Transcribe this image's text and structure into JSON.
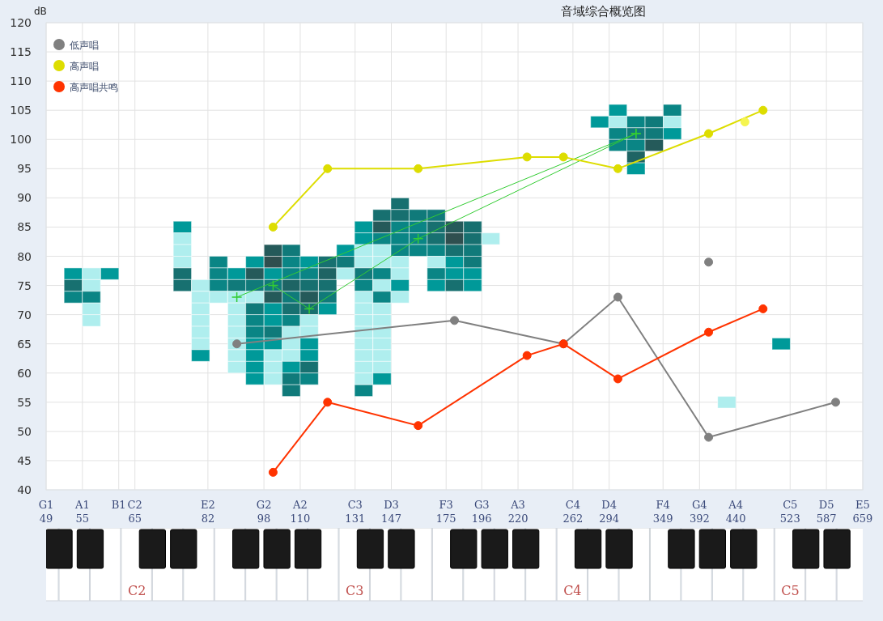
{
  "chart_data": {
    "type": "line",
    "title": "音域综合概览图",
    "ylabel": "dB",
    "log": "x",
    "xlim": [
      49,
      659
    ],
    "ylim": [
      40,
      120
    ],
    "xticks": [
      49,
      55,
      {
        "value": 61.74,
        "label": null
      },
      65,
      82,
      98,
      110,
      131,
      147,
      175,
      196,
      220,
      262,
      294,
      349,
      392,
      440,
      523,
      587,
      659
    ],
    "annotations": [
      "G1",
      "A1",
      "B1",
      "C2",
      "E2",
      "G2",
      "A2",
      "C3",
      "D3",
      "F3",
      "G3",
      "A3",
      "C4",
      "D4",
      "F4",
      "G4",
      "A4",
      "C5",
      "D5",
      "E5",
      "C2",
      "C3",
      "C4",
      "C5"
    ],
    "yticks": [
      40,
      45,
      50,
      55,
      60,
      65,
      70,
      75,
      80,
      85,
      90,
      95,
      100,
      105,
      110,
      115,
      120
    ],
    "grid": true,
    "legend": "top left",
    "series": [
      {
        "type": "scatter",
        "marker": "square",
        "x": [
          53.4,
          53.4,
          53.4,
          56.6,
          56.6,
          56.6,
          56.6,
          56.6,
          60.0,
          75.6,
          75.6,
          75.6,
          75.6,
          75.6,
          75.6,
          80.1,
          80.1,
          80.1,
          80.1,
          80.1,
          80.1,
          80.1,
          84.8,
          84.8,
          84.8,
          84.8,
          89.9,
          89.9,
          89.9,
          89.9,
          89.9,
          89.9,
          89.9,
          89.9,
          89.9,
          95.2,
          95.2,
          95.2,
          95.2,
          95.2,
          95.2,
          95.2,
          95.2,
          95.2,
          95.2,
          95.2,
          100.9,
          100.9,
          100.9,
          100.9,
          100.9,
          100.9,
          100.9,
          100.9,
          100.9,
          100.9,
          100.9,
          100.9,
          106.9,
          106.9,
          106.9,
          106.9,
          106.9,
          106.9,
          106.9,
          106.9,
          106.9,
          106.9,
          106.9,
          106.9,
          106.9,
          113.2,
          113.2,
          113.2,
          113.2,
          113.2,
          113.2,
          113.2,
          113.2,
          113.2,
          113.2,
          113.2,
          120.0,
          120.0,
          120.0,
          120.0,
          120.0,
          127.1,
          127.1,
          127.1,
          134.6,
          134.6,
          134.6,
          134.6,
          134.6,
          134.6,
          134.6,
          134.6,
          134.6,
          134.6,
          134.6,
          134.6,
          134.6,
          134.6,
          134.6,
          142.7,
          142.7,
          142.7,
          142.7,
          142.7,
          142.7,
          142.7,
          142.7,
          142.7,
          142.7,
          142.7,
          142.7,
          142.7,
          142.7,
          142.7,
          151.1,
          151.1,
          151.1,
          151.1,
          151.1,
          151.1,
          151.1,
          151.1,
          151.1,
          160.1,
          160.1,
          160.1,
          160.1,
          169.6,
          169.6,
          169.6,
          169.6,
          169.6,
          169.6,
          169.6,
          179.7,
          179.7,
          179.7,
          179.7,
          179.7,
          179.7,
          190.4,
          190.4,
          190.4,
          190.4,
          190.4,
          190.4,
          201.7,
          285.3,
          302.3,
          302.3,
          302.3,
          302.3,
          320.2,
          320.2,
          320.2,
          320.2,
          320.2,
          339.3,
          339.3,
          339.3,
          359.5,
          359.5,
          359.5,
          427.5,
          508.3
        ],
        "values": [
          77,
          75,
          73,
          77,
          75,
          73,
          71,
          69,
          77,
          85,
          83,
          81,
          79,
          77,
          75,
          75,
          73,
          71,
          69,
          67,
          65,
          63,
          79,
          77,
          75,
          73,
          77,
          75,
          73,
          71,
          69,
          67,
          65,
          63,
          61,
          79,
          77,
          75,
          73,
          71,
          69,
          67,
          65,
          63,
          61,
          59,
          81,
          79,
          77,
          75,
          73,
          71,
          69,
          67,
          65,
          63,
          61,
          59,
          81,
          79,
          77,
          75,
          73,
          71,
          69,
          67,
          65,
          63,
          61,
          59,
          57,
          79,
          77,
          75,
          73,
          71,
          69,
          67,
          65,
          63,
          61,
          59,
          79,
          77,
          75,
          73,
          71,
          81,
          79,
          77,
          85,
          83,
          81,
          79,
          77,
          75,
          73,
          71,
          69,
          67,
          65,
          63,
          61,
          59,
          57,
          87,
          85,
          83,
          81,
          79,
          77,
          75,
          73,
          71,
          69,
          67,
          65,
          63,
          61,
          59,
          89,
          87,
          85,
          83,
          81,
          79,
          77,
          75,
          73,
          87,
          85,
          83,
          81,
          87,
          85,
          83,
          81,
          79,
          77,
          75,
          85,
          83,
          81,
          79,
          77,
          75,
          85,
          83,
          81,
          79,
          77,
          75,
          83,
          103,
          105,
          103,
          101,
          99,
          103,
          101,
          99,
          97,
          95,
          103,
          101,
          99,
          105,
          103,
          101,
          55,
          65
        ],
        "colors": [
          "#009999",
          "#177070",
          "#0a8585",
          "#afeeee",
          "#afeeee",
          "#0a8585",
          "#afeeee",
          "#afeeee",
          "#009999",
          "#009999",
          "#afeeee",
          "#afeeee",
          "#afeeee",
          "#177070",
          "#177070",
          "#afeeee",
          "#afeeee",
          "#afeeee",
          "#afeeee",
          "#afeeee",
          "#afeeee",
          "#009999",
          "#0a8585",
          "#0a8585",
          "#0a8585",
          "#afeeee",
          "#009999",
          "#107a7a",
          "#afeeee",
          "#afeeee",
          "#afeeee",
          "#afeeee",
          "#afeeee",
          "#afeeee",
          "#afeeee",
          "#009999",
          "#255a5a",
          "#107a7a",
          "#afeeee",
          "#107a7a",
          "#0a8585",
          "#0a8585",
          "#009999",
          "#009999",
          "#009999",
          "#009999",
          "#255a5a",
          "#2f4f4f",
          "#009999",
          "#107a7a",
          "#255a5a",
          "#009999",
          "#009999",
          "#107a7a",
          "#009999",
          "#afeeee",
          "#afeeee",
          "#afeeee",
          "#107a7a",
          "#0a8585",
          "#0a8585",
          "#1e6464",
          "#107a7a",
          "#177070",
          "#0a8585",
          "#afeeee",
          "#afeeee",
          "#afeeee",
          "#009999",
          "#107a7a",
          "#107a7a",
          "#009999",
          "#0a8585",
          "#177070",
          "#255a5a",
          "#177070",
          "#afeeee",
          "#afeeee",
          "#009999",
          "#009999",
          "#177070",
          "#0a8585",
          "#177070",
          "#1e6464",
          "#177070",
          "#107a7a",
          "#009999",
          "#009999",
          "#107a7a",
          "#afeeee",
          "#009999",
          "#009999",
          "#afeeee",
          "#afeeee",
          "#107a7a",
          "#0a8585",
          "#afeeee",
          "#afeeee",
          "#afeeee",
          "#afeeee",
          "#afeeee",
          "#afeeee",
          "#afeeee",
          "#afeeee",
          "#0a8585",
          "#177070",
          "#255a5a",
          "#0a8585",
          "#afeeee",
          "#afeeee",
          "#0a8585",
          "#afeeee",
          "#0a8585",
          "#afeeee",
          "#afeeee",
          "#afeeee",
          "#afeeee",
          "#afeeee",
          "#afeeee",
          "#009999",
          "#177070",
          "#177070",
          "#0a8585",
          "#0a8585",
          "#0a8585",
          "#afeeee",
          "#afeeee",
          "#009999",
          "#afeeee",
          "#107a7a",
          "#0a8585",
          "#0a8585",
          "#0a8585",
          "#107a7a",
          "#177070",
          "#177070",
          "#0a8585",
          "#afeeee",
          "#0a8585",
          "#009999",
          "#255a5a",
          "#2f4f4f",
          "#177070",
          "#009999",
          "#009999",
          "#177070",
          "#177070",
          "#177070",
          "#107a7a",
          "#107a7a",
          "#009999",
          "#009999",
          "#afeeee",
          "#009999",
          "#009999",
          "#afeeee",
          "#0a8585",
          "#0a8585",
          "#0a8585",
          "#107a7a",
          "#0a8585",
          "#1e6464",
          "#009999",
          "#107a7a",
          "#107a7a",
          "#255a5a",
          "#0a8585",
          "#afeeee",
          "#009999",
          "#afeeee",
          "#009999"
        ]
      },
      {
        "type": "line",
        "marker": "cross",
        "color": "#33cc33",
        "x": [
          89.9,
          320.2
        ],
        "values": [
          73,
          101
        ]
      },
      {
        "type": "line",
        "marker": "cross",
        "color": "#33cc33",
        "x": [
          100.9,
          113.2,
          160.1,
          320.2
        ],
        "values": [
          75,
          71,
          83,
          101
        ]
      },
      {
        "type": "line",
        "marker": "circle",
        "name": "低声唱",
        "color": "#808080",
        "x": [
          89.9,
          179.7,
          254.2,
          302.3,
          403.5,
          604.5
        ],
        "values": [
          65,
          69,
          65,
          73,
          49,
          55
        ]
      },
      {
        "type": "scatter",
        "marker": "circle",
        "color": "#808080",
        "x": [
          403.5
        ],
        "values": [
          79
        ]
      },
      {
        "type": "line",
        "marker": "circle",
        "name": "高声唱",
        "color": "#dddd00",
        "x": [
          100.9,
          120.0,
          160.1,
          226.4,
          254.2,
          302.3,
          403.5,
          479.8
        ],
        "values": [
          85,
          95,
          95,
          97,
          97,
          95,
          101,
          105
        ]
      },
      {
        "type": "scatter",
        "marker": "circle",
        "color": "#f5f550",
        "x": [
          452.9
        ],
        "values": [
          103
        ]
      },
      {
        "type": "line",
        "marker": "circle",
        "name": "高声唱共鸣",
        "color": "#ff3300",
        "x": [
          100.9,
          120.0,
          160.1,
          226.4,
          254.2,
          302.3,
          403.5,
          479.8
        ],
        "values": [
          43,
          55,
          51,
          63,
          65,
          59,
          67,
          71
        ]
      }
    ]
  }
}
